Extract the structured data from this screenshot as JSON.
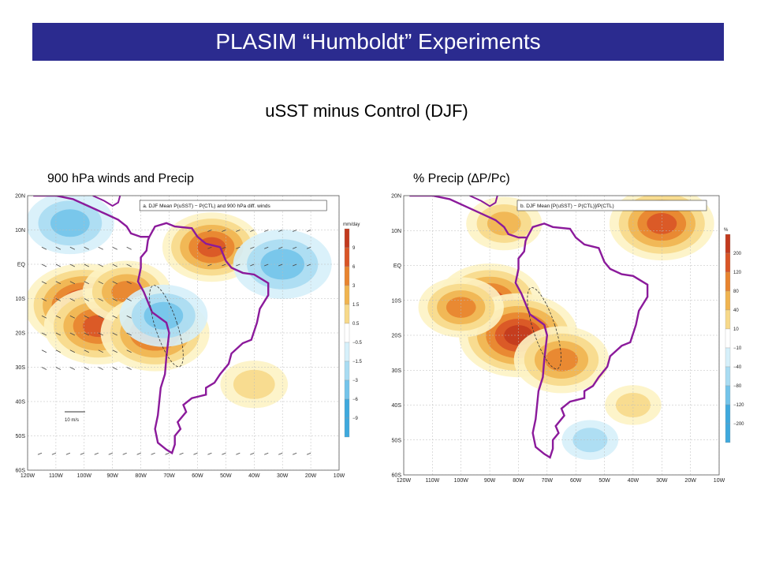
{
  "slide": {
    "title": "PLASIM “Humboldt” Experiments",
    "subtitle": "uSST minus Control (DJF)",
    "left_caption": "900 hPa winds and Precip",
    "right_caption": "% Precip (∆P/Pc)"
  },
  "colors": {
    "title_bg": "#2b2b8f",
    "coast": "#8b1a9b",
    "pos_scale": [
      "#fdf3c4",
      "#f7d98a",
      "#f0b450",
      "#e8842f",
      "#d95526",
      "#c23a1e"
    ],
    "neg_scale": [
      "#d6f0fa",
      "#a9dcf2",
      "#73c4ea",
      "#3fa9dd"
    ]
  },
  "chart_data": [
    {
      "type": "heatmap",
      "panel_title": "a. DJF Mean P(uSST) − P(CTL) and 900 hPa diff. winds",
      "xlabel": "",
      "ylabel": "",
      "xlim": [
        -120,
        -10
      ],
      "ylim": [
        -60,
        20
      ],
      "x_ticks": [
        "120W",
        "110W",
        "100W",
        "90W",
        "80W",
        "70W",
        "60W",
        "50W",
        "40W",
        "30W",
        "20W",
        "10W"
      ],
      "y_ticks": [
        "20N",
        "10N",
        "EQ",
        "10S",
        "20S",
        "30S",
        "40S",
        "50S",
        "60S"
      ],
      "legend_unit": "mm/day",
      "legend_levels": [
        "9",
        "6",
        "3",
        "1.5",
        "0.5",
        "−0.5",
        "−1.5",
        "−3",
        "−6",
        "−9"
      ],
      "vector_reference": "10 m/s",
      "grid": true,
      "anomalies": [
        {
          "lon": -100,
          "lat": -12,
          "value": 3.5
        },
        {
          "lon": -95,
          "lat": -18,
          "value": 3.0
        },
        {
          "lon": -85,
          "lat": -8,
          "value": 2.0
        },
        {
          "lon": -75,
          "lat": -20,
          "value": 3.0
        },
        {
          "lon": -55,
          "lat": 5,
          "value": 2.5
        },
        {
          "lon": -105,
          "lat": 12,
          "value": -2.0
        },
        {
          "lon": -30,
          "lat": 0,
          "value": -2.5
        },
        {
          "lon": -72,
          "lat": -15,
          "value": -2.0
        },
        {
          "lon": -40,
          "lat": -35,
          "value": 1.0
        }
      ]
    },
    {
      "type": "heatmap",
      "panel_title": "b. DJF Mean [P(uSST) − P(CTL)]/P(CTL)",
      "xlabel": "",
      "ylabel": "",
      "xlim": [
        -120,
        -10
      ],
      "ylim": [
        -60,
        20
      ],
      "x_ticks": [
        "120W",
        "110W",
        "100W",
        "90W",
        "80W",
        "70W",
        "60W",
        "50W",
        "40W",
        "30W",
        "20W",
        "10W"
      ],
      "y_ticks": [
        "20N",
        "10N",
        "EQ",
        "10S",
        "20S",
        "30S",
        "40S",
        "50S",
        "60S"
      ],
      "legend_unit": "%",
      "legend_levels": [
        "200",
        "120",
        "80",
        "40",
        "10",
        "−10",
        "−40",
        "−80",
        "−120",
        "−200"
      ],
      "grid": true,
      "anomalies": [
        {
          "lon": -90,
          "lat": -10,
          "value": 120
        },
        {
          "lon": -80,
          "lat": -20,
          "value": 150
        },
        {
          "lon": -100,
          "lat": -12,
          "value": 80
        },
        {
          "lon": -65,
          "lat": -27,
          "value": 100
        },
        {
          "lon": -30,
          "lat": 12,
          "value": 120
        },
        {
          "lon": -85,
          "lat": 12,
          "value": 60
        },
        {
          "lon": -40,
          "lat": -40,
          "value": 20
        },
        {
          "lon": -55,
          "lat": -50,
          "value": -20
        }
      ]
    }
  ]
}
